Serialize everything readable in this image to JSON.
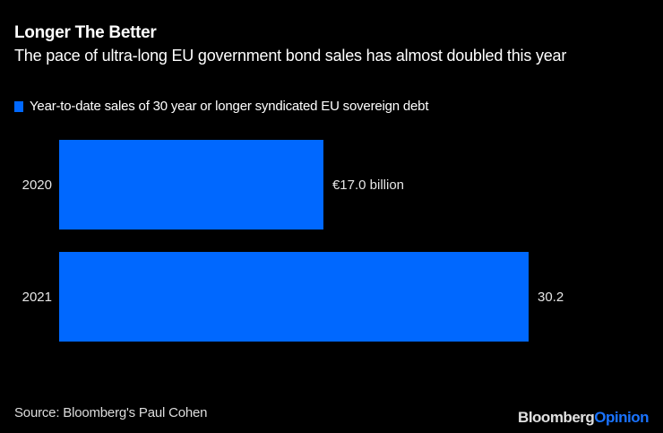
{
  "chart_data": {
    "type": "bar",
    "orientation": "horizontal",
    "title": "Longer The Better",
    "subtitle": "The pace of ultra-long EU government bond sales has almost doubled this year",
    "categories": [
      "2020",
      "2021"
    ],
    "series": [
      {
        "name": "Year-to-date sales of 30 year or longer syndicated EU sovereign debt",
        "color": "#0068ff",
        "values": [
          17.0,
          30.2
        ],
        "labels": [
          "€17.0 billion",
          "30.2"
        ]
      }
    ],
    "xlabel": "",
    "ylabel": "",
    "xlim": [
      0,
      30.2
    ],
    "grid": false,
    "legend_position": "top-left"
  },
  "footer": {
    "source": "Source: Bloomberg's Paul Cohen",
    "brand_part1": "Bloomberg",
    "brand_part2": "Opinion"
  }
}
